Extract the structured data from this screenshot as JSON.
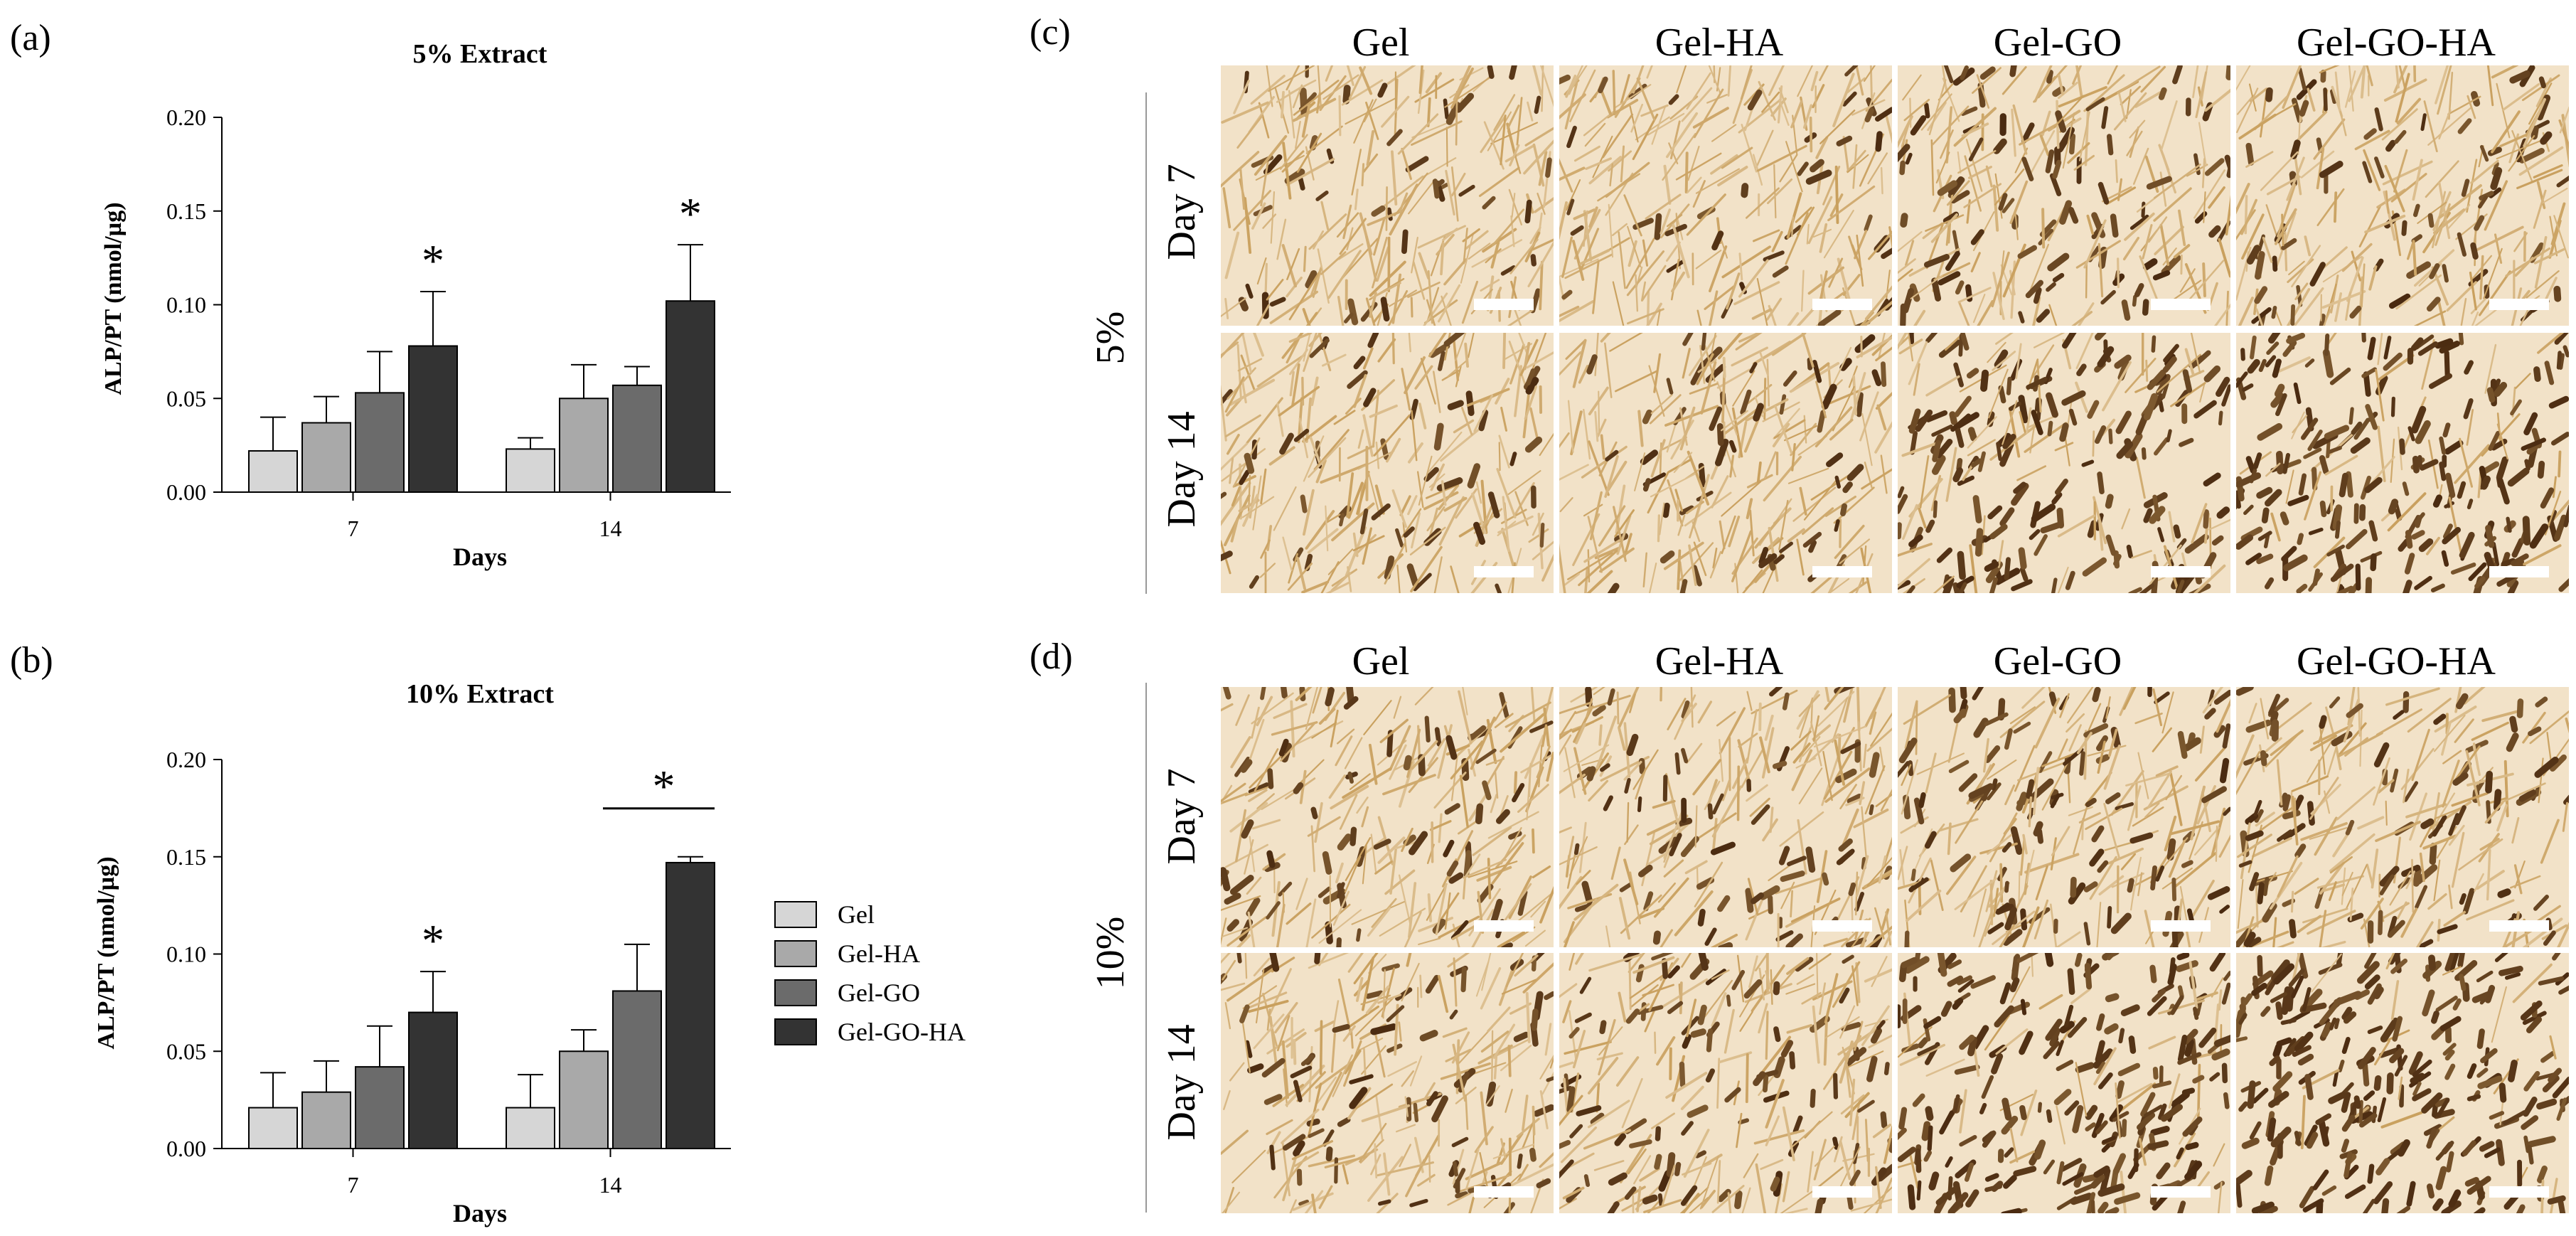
{
  "panel_labels": {
    "a": "(a)",
    "b": "(b)",
    "c": "(c)",
    "d": "(d)"
  },
  "colors": {
    "Gel": "#d6d6d6",
    "Gel-HA": "#a9a9a9",
    "Gel-GO": "#6b6b6b",
    "Gel-GO-HA": "#333333",
    "background_stain": "#f2e2c8",
    "cell_light": "#c9a05e",
    "cell_dark": "#4a2a10"
  },
  "legend": [
    "Gel",
    "Gel-HA",
    "Gel-GO",
    "Gel-GO-HA"
  ],
  "chart_data": [
    {
      "type": "bar",
      "title": "5% Extract",
      "xlabel": "Days",
      "ylabel": "ALP/PT (nmol/µg)",
      "categories": [
        "7",
        "14"
      ],
      "ylim": [
        0,
        0.2
      ],
      "yticks": [
        "0.00",
        "0.05",
        "0.10",
        "0.15",
        "0.20"
      ],
      "series": [
        {
          "name": "Gel",
          "values": [
            0.022,
            0.023
          ],
          "errors": [
            0.018,
            0.006
          ]
        },
        {
          "name": "Gel-HA",
          "values": [
            0.037,
            0.05
          ],
          "errors": [
            0.014,
            0.018
          ]
        },
        {
          "name": "Gel-GO",
          "values": [
            0.053,
            0.057
          ],
          "errors": [
            0.022,
            0.01
          ]
        },
        {
          "name": "Gel-GO-HA",
          "values": [
            0.078,
            0.102
          ],
          "errors": [
            0.029,
            0.03
          ]
        }
      ],
      "annotations": [
        {
          "text": "*",
          "category": "7",
          "series": "Gel-GO-HA"
        },
        {
          "text": "*",
          "category": "14",
          "series": "Gel-GO-HA"
        }
      ]
    },
    {
      "type": "bar",
      "title": "10% Extract",
      "xlabel": "Days",
      "ylabel": "ALP/PT (nmol/µg)",
      "categories": [
        "7",
        "14"
      ],
      "ylim": [
        0,
        0.2
      ],
      "yticks": [
        "0.00",
        "0.05",
        "0.10",
        "0.15",
        "0.20"
      ],
      "series": [
        {
          "name": "Gel",
          "values": [
            0.021,
            0.021
          ],
          "errors": [
            0.018,
            0.017
          ]
        },
        {
          "name": "Gel-HA",
          "values": [
            0.029,
            0.05
          ],
          "errors": [
            0.016,
            0.011
          ]
        },
        {
          "name": "Gel-GO",
          "values": [
            0.042,
            0.081
          ],
          "errors": [
            0.021,
            0.024
          ]
        },
        {
          "name": "Gel-GO-HA",
          "values": [
            0.07,
            0.147
          ],
          "errors": [
            0.021,
            0.003
          ]
        }
      ],
      "annotations": [
        {
          "text": "*",
          "category": "7",
          "series": "Gel-GO-HA"
        },
        {
          "text": "*",
          "category": "14",
          "series": [
            "Gel-GO",
            "Gel-GO-HA"
          ],
          "bracket": true
        }
      ]
    }
  ],
  "micrographs": {
    "columns": [
      "Gel",
      "Gel-HA",
      "Gel-GO",
      "Gel-GO-HA"
    ],
    "panels": [
      {
        "label": "5%",
        "rows": [
          {
            "label": "Day 7",
            "density": [
              0.15,
              0.18,
              0.35,
              0.3
            ]
          },
          {
            "label": "Day 14",
            "density": [
              0.2,
              0.22,
              0.7,
              0.8
            ]
          }
        ]
      },
      {
        "label": "10%",
        "rows": [
          {
            "label": "Day 7",
            "density": [
              0.25,
              0.25,
              0.4,
              0.3
            ]
          },
          {
            "label": "Day 14",
            "density": [
              0.3,
              0.4,
              0.85,
              0.9
            ]
          }
        ]
      }
    ]
  }
}
